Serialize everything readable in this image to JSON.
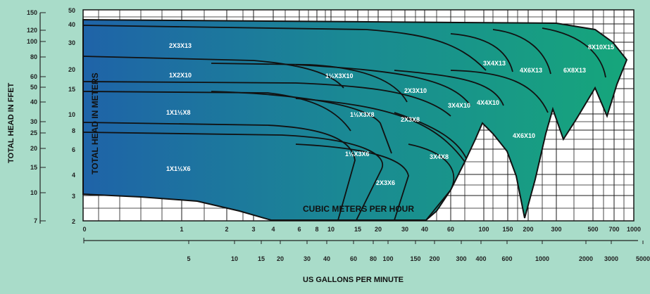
{
  "chart_data": {
    "type": "area",
    "title": "",
    "ylabel_left": "TOTAL HEAD IN FFET",
    "ylabel_inner": "TOTAL HEAD IN METERS",
    "xlabel_bottom": "US GALLONS PER MINUTE",
    "xlabel_inner": "CUBIC METERS PER HOUR",
    "x_scale": "log",
    "y_scale": "log",
    "grid": true,
    "feet_ticks": [
      "150",
      "120",
      "100",
      "80",
      "60",
      "50",
      "40",
      "30",
      "25",
      "20",
      "15",
      "10",
      "7"
    ],
    "meters_ticks": [
      "50",
      "40",
      "30",
      "20",
      "15",
      "10",
      "8",
      "6",
      "4",
      "3",
      "2"
    ],
    "m3h_ticks": [
      "0",
      "1",
      "2",
      "3",
      "4",
      "6",
      "8",
      "10",
      "15",
      "20",
      "30",
      "40",
      "60",
      "100",
      "150",
      "200",
      "300",
      "500",
      "700",
      "1000"
    ],
    "gpm_ticks": [
      "5",
      "10",
      "15",
      "20",
      "30",
      "40",
      "60",
      "80",
      "100",
      "150",
      "200",
      "300",
      "400",
      "600",
      "1000",
      "2000",
      "3000",
      "5000"
    ],
    "series": [
      {
        "name": "2X3X13"
      },
      {
        "name": "3X4X13"
      },
      {
        "name": "4X6X13"
      },
      {
        "name": "6X8X13"
      },
      {
        "name": "8X10X15"
      },
      {
        "name": "1X2X10"
      },
      {
        "name": "1½X3X10"
      },
      {
        "name": "2X3X10"
      },
      {
        "name": "3X4X10"
      },
      {
        "name": "4X4X10"
      },
      {
        "name": "1X1½X8"
      },
      {
        "name": "1½X3X8"
      },
      {
        "name": "2X3X8"
      },
      {
        "name": "3X4X8"
      },
      {
        "name": "4X6X10"
      },
      {
        "name": "1½X3X6"
      },
      {
        "name": "1X1½X6"
      },
      {
        "name": "2X3X6"
      }
    ],
    "colors": {
      "background": "#a9dcc9",
      "grid_bg": "#ffffff",
      "grid_line": "#1a1a1a",
      "fill_start": "#1f63a8",
      "fill_end": "#16a67b",
      "curve": "#111111"
    }
  }
}
